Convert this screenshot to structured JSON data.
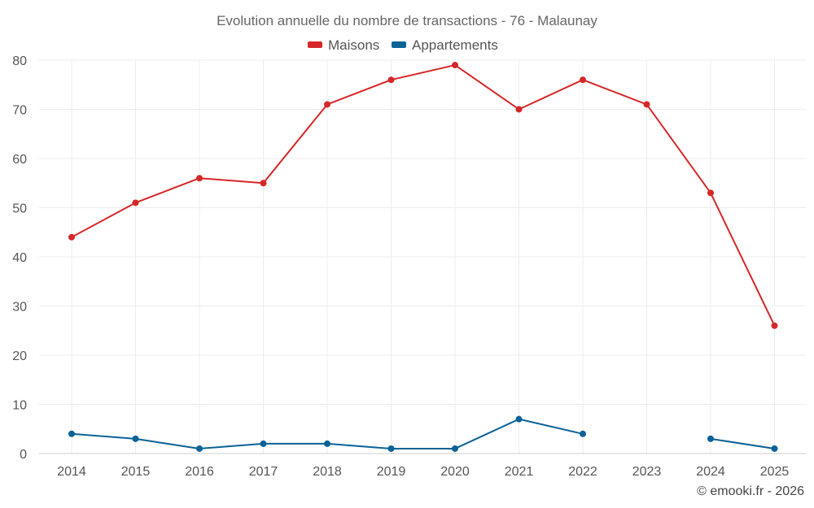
{
  "chart_data": {
    "type": "line",
    "title": "Evolution annuelle du nombre de transactions - 76 - Malaunay",
    "categories": [
      "2014",
      "2015",
      "2016",
      "2017",
      "2018",
      "2019",
      "2020",
      "2021",
      "2022",
      "2023",
      "2024",
      "2025"
    ],
    "series": [
      {
        "name": "Maisons",
        "color": "#d62728",
        "values": [
          44,
          51,
          56,
          55,
          71,
          76,
          79,
          70,
          76,
          71,
          53,
          26
        ]
      },
      {
        "name": "Appartements",
        "color": "#0a6296",
        "values": [
          4,
          3,
          1,
          2,
          2,
          1,
          1,
          7,
          4,
          null,
          3,
          1
        ]
      }
    ],
    "ylim": [
      0,
      80
    ],
    "yticks": [
      0,
      10,
      20,
      30,
      40,
      50,
      60,
      70,
      80
    ],
    "grid": true,
    "legend": "top-center",
    "credit": "© emooki.fr - 2026"
  }
}
